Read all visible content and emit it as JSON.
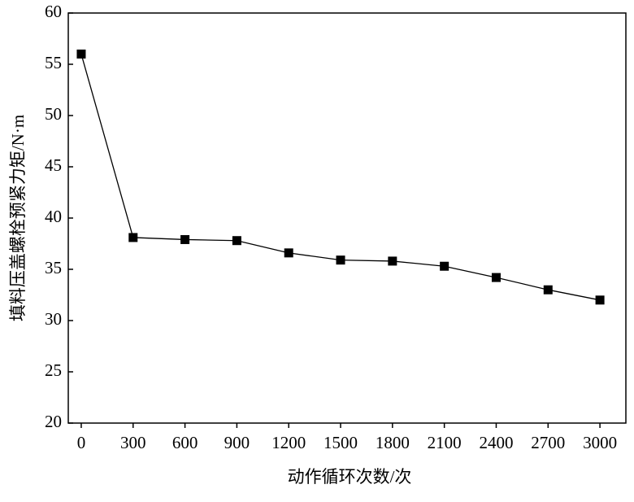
{
  "chart_data": {
    "type": "line",
    "x_label": "动作循环次数/次",
    "y_label": "填料压盖螺栓预紧力矩/N·m",
    "x": [
      0,
      300,
      600,
      900,
      1200,
      1500,
      1800,
      2100,
      2400,
      2700,
      3000
    ],
    "series": [
      {
        "color": "#000000",
        "values": [
          56,
          38.1,
          37.9,
          37.8,
          36.6,
          35.9,
          35.8,
          35.3,
          34.2,
          33.0,
          32.0
        ]
      }
    ],
    "xlim": [
      -75,
      3150
    ],
    "xticks": [
      0,
      300,
      600,
      900,
      1200,
      1500,
      1800,
      2100,
      2400,
      2700,
      3000
    ],
    "ylim": [
      20,
      60
    ],
    "yticks": [
      20,
      25,
      30,
      35,
      40,
      45,
      50,
      55,
      60
    ]
  }
}
